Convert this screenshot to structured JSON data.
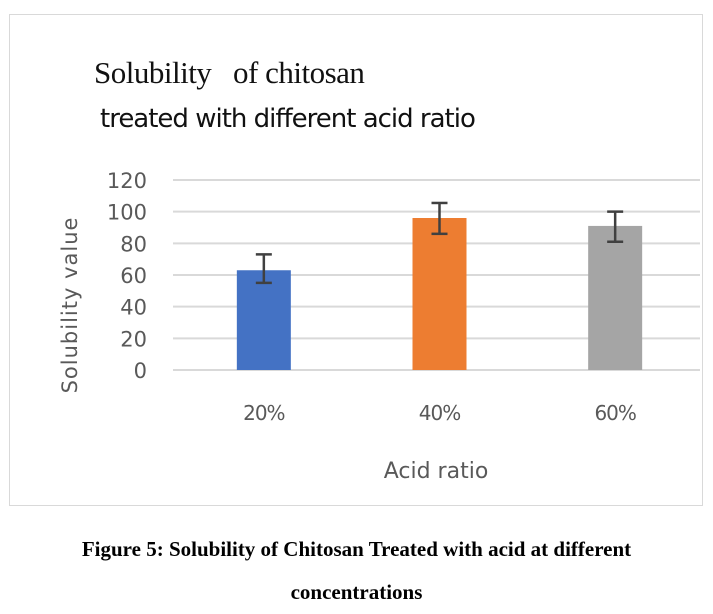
{
  "chart_data": {
    "type": "bar",
    "title_line1": "Solubility   of chitosan",
    "title_line2": "treated with different acid ratio",
    "categories": [
      "20%",
      "40%",
      "60%"
    ],
    "values": [
      63,
      96,
      91
    ],
    "error_plus": [
      10,
      9.5,
      9
    ],
    "error_minus": [
      8,
      10,
      10
    ],
    "colors": [
      "#4472c4",
      "#ed7d31",
      "#a5a5a5"
    ],
    "xlabel": "Acid ratio",
    "ylabel": "Solubility value",
    "ylim": [
      0,
      120
    ],
    "yticks": [
      "0",
      "20",
      "40",
      "60",
      "80",
      "100",
      "120"
    ],
    "grid": true
  },
  "caption": {
    "line1": "Figure 5: Solubility of Chitosan Treated with acid at different",
    "line2": "concentrations"
  }
}
